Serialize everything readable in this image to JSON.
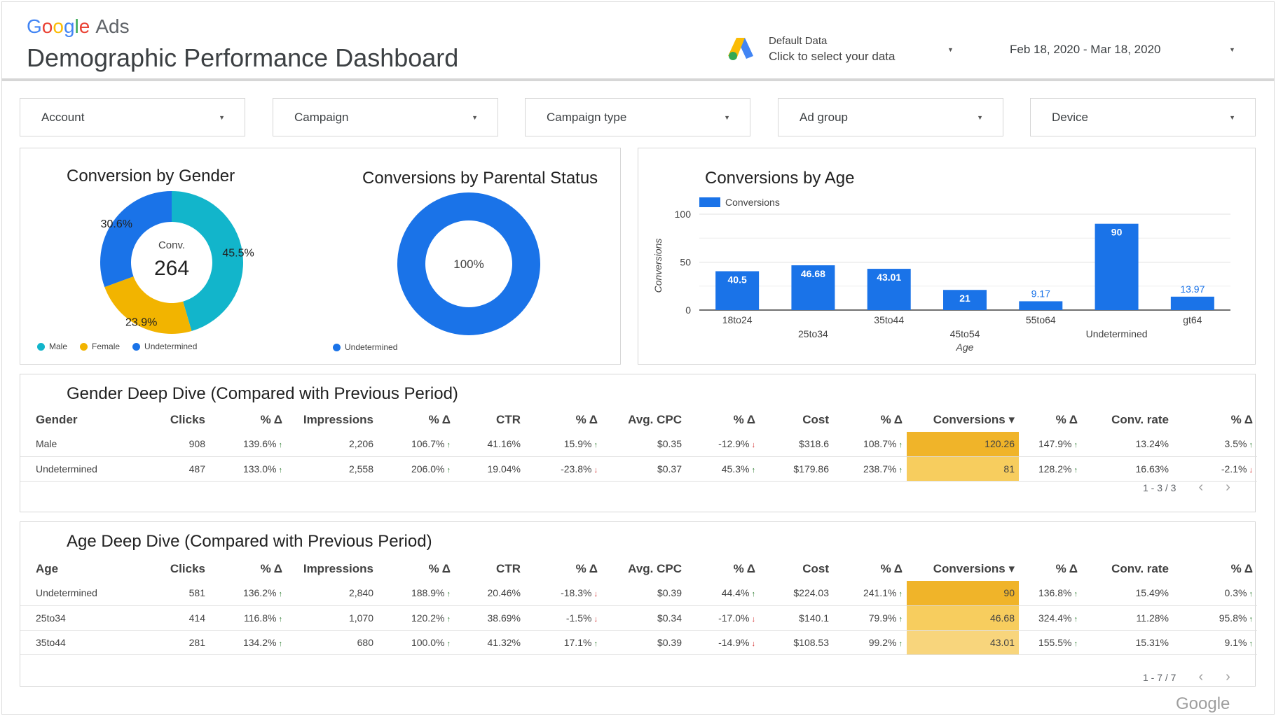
{
  "header": {
    "brand_google": [
      "G",
      "o",
      "o",
      "g",
      "l",
      "e"
    ],
    "brand_product": "Ads",
    "page_title": "Demographic Performance Dashboard",
    "data_source_name": "Default Data",
    "data_source_hint": "Click to select your data",
    "date_range": "Feb 18, 2020 - Mar 18, 2020"
  },
  "filters": [
    "Account",
    "Campaign",
    "Campaign type",
    "Ad group",
    "Device"
  ],
  "gender_chart": {
    "title": "Conversion by Gender",
    "center_label": "Conv.",
    "center_value": "264",
    "labels": [
      "45.5%",
      "23.9%",
      "30.6%"
    ],
    "legend": [
      "Male",
      "Female",
      "Undetermined"
    ],
    "colors": [
      "#12b5cb",
      "#f2b400",
      "#1a73e8"
    ]
  },
  "parental_chart": {
    "title": "Conversions by Parental Status",
    "center_label": "100%",
    "legend": [
      "Undetermined"
    ],
    "color": "#1a73e8"
  },
  "age_chart_title": "Conversions by Age",
  "chart_data": [
    {
      "type": "pie",
      "title": "Conversion by Gender",
      "categories": [
        "Male",
        "Female",
        "Undetermined"
      ],
      "values": [
        45.5,
        23.9,
        30.6
      ],
      "unit": "%",
      "total_label": "Conv.",
      "total": 264
    },
    {
      "type": "pie",
      "title": "Conversions by Parental Status",
      "categories": [
        "Undetermined"
      ],
      "values": [
        100
      ],
      "unit": "%"
    },
    {
      "type": "bar",
      "title": "Conversions by Age",
      "categories": [
        "18to24",
        "25to34",
        "35to44",
        "45to54",
        "55to64",
        "Undetermined",
        "gt64"
      ],
      "series": [
        {
          "name": "Conversions",
          "values": [
            40.5,
            46.68,
            43.01,
            21,
            9.17,
            90,
            13.97
          ]
        }
      ],
      "xlabel": "Age",
      "ylabel": "Conversions",
      "ylim": [
        0,
        100
      ],
      "yticks": [
        0,
        50,
        100
      ],
      "legend": "top-left",
      "grid": true,
      "color": "#1a73e8"
    }
  ],
  "gender_table": {
    "title": "Gender Deep Dive (Compared with Previous Period)",
    "headers": [
      "Gender",
      "Clicks",
      "% Δ",
      "Impressions",
      "% Δ",
      "CTR",
      "% Δ",
      "Avg. CPC",
      "% Δ",
      "Cost",
      "% Δ",
      "Conversions ▾",
      "% Δ",
      "Conv. rate",
      "% Δ"
    ],
    "rows": [
      {
        "cells": [
          "Male",
          "908",
          "139.6%",
          "2,206",
          "106.7%",
          "41.16%",
          "15.9%",
          "$0.35",
          "-12.9%",
          "$318.6",
          "108.7%",
          "120.26",
          "147.9%",
          "13.24%",
          "3.5%"
        ],
        "dirs": [
          "",
          "",
          "up",
          "",
          "up",
          "",
          "up",
          "",
          "down",
          "",
          "up",
          "",
          "up",
          "",
          "up"
        ]
      },
      {
        "cells": [
          "Undetermined",
          "487",
          "133.0%",
          "2,558",
          "206.0%",
          "19.04%",
          "-23.8%",
          "$0.37",
          "45.3%",
          "$179.86",
          "238.7%",
          "81",
          "128.2%",
          "16.63%",
          "-2.1%"
        ],
        "dirs": [
          "",
          "",
          "up",
          "",
          "up",
          "",
          "down",
          "",
          "up",
          "",
          "up",
          "",
          "up",
          "",
          "down"
        ]
      }
    ],
    "pager": "1 - 3 / 3"
  },
  "age_table": {
    "title": "Age Deep Dive (Compared with Previous Period)",
    "headers": [
      "Age",
      "Clicks",
      "% Δ",
      "Impressions",
      "% Δ",
      "CTR",
      "% Δ",
      "Avg. CPC",
      "% Δ",
      "Cost",
      "% Δ",
      "Conversions ▾",
      "% Δ",
      "Conv. rate",
      "% Δ"
    ],
    "rows": [
      {
        "cells": [
          "Undetermined",
          "581",
          "136.2%",
          "2,840",
          "188.9%",
          "20.46%",
          "-18.3%",
          "$0.39",
          "44.4%",
          "$224.03",
          "241.1%",
          "90",
          "136.8%",
          "15.49%",
          "0.3%"
        ],
        "dirs": [
          "",
          "",
          "up",
          "",
          "up",
          "",
          "down",
          "",
          "up",
          "",
          "up",
          "",
          "up",
          "",
          "up"
        ]
      },
      {
        "cells": [
          "25to34",
          "414",
          "116.8%",
          "1,070",
          "120.2%",
          "38.69%",
          "-1.5%",
          "$0.34",
          "-17.0%",
          "$140.1",
          "79.9%",
          "46.68",
          "324.4%",
          "11.28%",
          "95.8%"
        ],
        "dirs": [
          "",
          "",
          "up",
          "",
          "up",
          "",
          "down",
          "",
          "down",
          "",
          "up",
          "",
          "up",
          "",
          "up"
        ]
      },
      {
        "cells": [
          "35to44",
          "281",
          "134.2%",
          "680",
          "100.0%",
          "41.32%",
          "17.1%",
          "$0.39",
          "-14.9%",
          "$108.53",
          "99.2%",
          "43.01",
          "155.5%",
          "15.31%",
          "9.1%"
        ],
        "dirs": [
          "",
          "",
          "up",
          "",
          "up",
          "",
          "up",
          "",
          "down",
          "",
          "up",
          "",
          "up",
          "",
          "up"
        ]
      }
    ],
    "pager": "1 - 7 / 7"
  },
  "footer": {
    "brand": "Google"
  }
}
